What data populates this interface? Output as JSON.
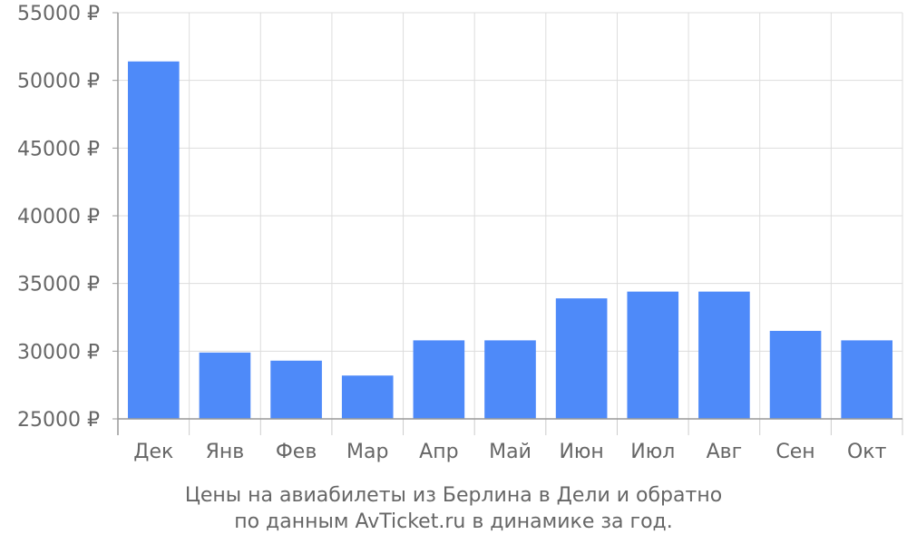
{
  "chart_data": {
    "type": "bar",
    "categories": [
      "Дек",
      "Янв",
      "Фев",
      "Мар",
      "Апр",
      "Май",
      "Июн",
      "Июл",
      "Авг",
      "Сен",
      "Окт"
    ],
    "values": [
      51400,
      29900,
      29300,
      28200,
      30800,
      30800,
      33900,
      34400,
      34400,
      31500,
      30800
    ],
    "y_ticks": [
      "25000 ₽",
      "30000 ₽",
      "35000 ₽",
      "40000 ₽",
      "45000 ₽",
      "50000 ₽",
      "55000 ₽"
    ],
    "ylim": [
      25000,
      55000
    ],
    "grid": true,
    "bar_color": "#4e8af9",
    "caption_line1": "Цены на авиабилеты из Берлина в Дели и обратно",
    "caption_line2": "по данным AvTicket.ru в динамике за год."
  }
}
